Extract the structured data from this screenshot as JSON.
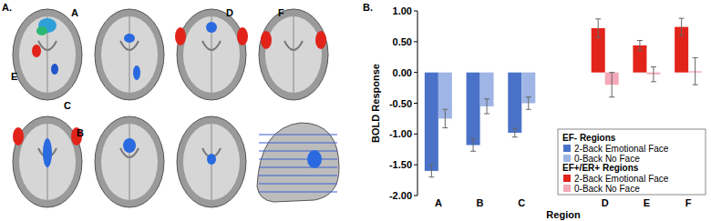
{
  "panel_labels": [
    "A.",
    "B."
  ],
  "brain_labels": [
    "A",
    "B",
    "C",
    "D",
    "E",
    "F"
  ],
  "chart_data": {
    "type": "bar",
    "x_label": "Region",
    "y_label": "BOLD Response",
    "categories": [
      "A",
      "B",
      "C",
      null,
      "D",
      "E",
      "F"
    ],
    "ylim": [
      -2,
      1
    ],
    "yticks": [
      {
        "value": 1,
        "label": "1.00"
      },
      {
        "value": 0.5,
        "label": "0.50"
      },
      {
        "value": 0,
        "label": "0.00"
      },
      {
        "value": -0.5,
        "label": "-0.50"
      },
      {
        "value": -1,
        "label": "-1.00"
      },
      {
        "value": -1.5,
        "label": "-1.50"
      },
      {
        "value": -2,
        "label": "-2.00"
      }
    ],
    "grid": false,
    "legend": "lower right",
    "series": [
      {
        "name": "2-Back Emotional Face",
        "group": "EF- Regions",
        "color": "#4a72c8",
        "values": [
          -1.6,
          -1.18,
          -0.98,
          null,
          null,
          null,
          null
        ],
        "errors": [
          0.1,
          0.1,
          0.07,
          null,
          null,
          null,
          null
        ]
      },
      {
        "name": "0-Back No Face",
        "group": "EF- Regions",
        "color": "#9fb5e6",
        "values": [
          -0.75,
          -0.55,
          -0.5,
          null,
          null,
          null,
          null
        ],
        "errors": [
          0.15,
          0.12,
          0.1,
          null,
          null,
          null,
          null
        ]
      },
      {
        "name": "2-Back Emotional Face",
        "group": "EF+/ER+ Regions",
        "color": "#e2231a",
        "values": [
          null,
          null,
          null,
          null,
          0.72,
          0.44,
          0.74
        ],
        "errors": [
          null,
          null,
          null,
          null,
          0.15,
          0.08,
          0.14
        ]
      },
      {
        "name": "0-Back No Face",
        "group": "EF+/ER+ Regions",
        "color": "#f4a8b8",
        "values": [
          null,
          null,
          null,
          null,
          -0.2,
          -0.03,
          0.02
        ],
        "errors": [
          null,
          null,
          null,
          null,
          0.2,
          0.12,
          0.22
        ]
      }
    ]
  }
}
